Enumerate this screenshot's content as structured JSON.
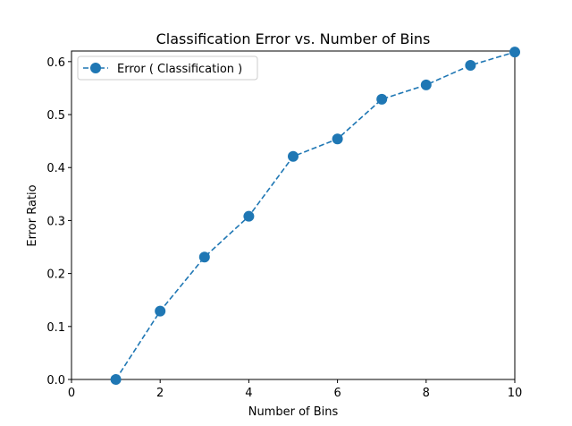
{
  "chart_data": {
    "type": "line",
    "title": "Classification Error vs. Number of Bins",
    "xlabel": "Number of Bins",
    "ylabel": "Error Ratio",
    "xlim": [
      0,
      10
    ],
    "ylim": [
      0,
      0.62
    ],
    "xticks": [
      0,
      2,
      4,
      6,
      8,
      10
    ],
    "xtick_labels": [
      "0",
      "2",
      "4",
      "6",
      "8",
      "10"
    ],
    "yticks": [
      0.0,
      0.1,
      0.2,
      0.3,
      0.4,
      0.5,
      0.6
    ],
    "ytick_labels": [
      "0.0",
      "0.1",
      "0.2",
      "0.3",
      "0.4",
      "0.5",
      "0.6"
    ],
    "grid": false,
    "legend_position": "top-left",
    "series": [
      {
        "name": "Error ( Classification )",
        "color": "#1f77b4",
        "line_style": "dashed",
        "marker": "circle",
        "x": [
          1,
          2,
          3,
          4,
          5,
          6,
          7,
          8,
          9,
          10
        ],
        "y": [
          0.0,
          0.129,
          0.231,
          0.308,
          0.421,
          0.454,
          0.529,
          0.556,
          0.593,
          0.618
        ]
      }
    ]
  }
}
